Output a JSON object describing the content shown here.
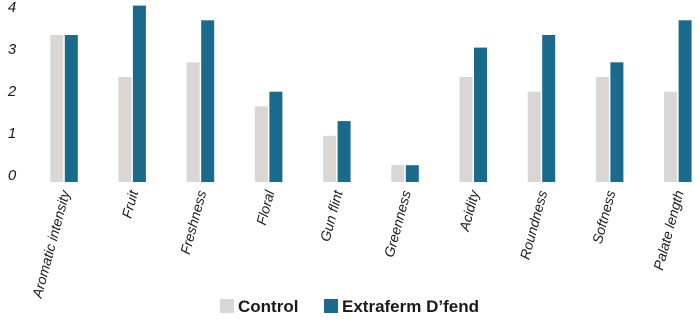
{
  "chart_data": {
    "type": "bar",
    "title": "",
    "xlabel": "",
    "ylabel": "",
    "ylim": [
      0,
      4
    ],
    "yticks": [
      "0",
      "1",
      "2",
      "3",
      "4"
    ],
    "grid": false,
    "legend_position": "bottom",
    "categories": [
      "Aromatic intensity",
      "Fruit",
      "Freshness",
      "Floral",
      "Gun flint",
      "Greenness",
      "Acidity",
      "Roundness",
      "Softness",
      "Palate length"
    ],
    "series": [
      {
        "name": "Control",
        "color": "#d9d6d3",
        "values": [
          3.5,
          2.5,
          2.85,
          1.8,
          1.1,
          0.4,
          2.5,
          2.15,
          2.5,
          2.15
        ]
      },
      {
        "name": "Extraferm D’fend",
        "color": "#1a6a8c",
        "values": [
          3.5,
          4.2,
          3.85,
          2.15,
          1.45,
          0.4,
          3.2,
          3.5,
          2.85,
          3.85
        ]
      }
    ]
  },
  "legend": {
    "control_swatch_color": "#d9d6d3",
    "extraferm_swatch_color": "#1a6a8c"
  }
}
